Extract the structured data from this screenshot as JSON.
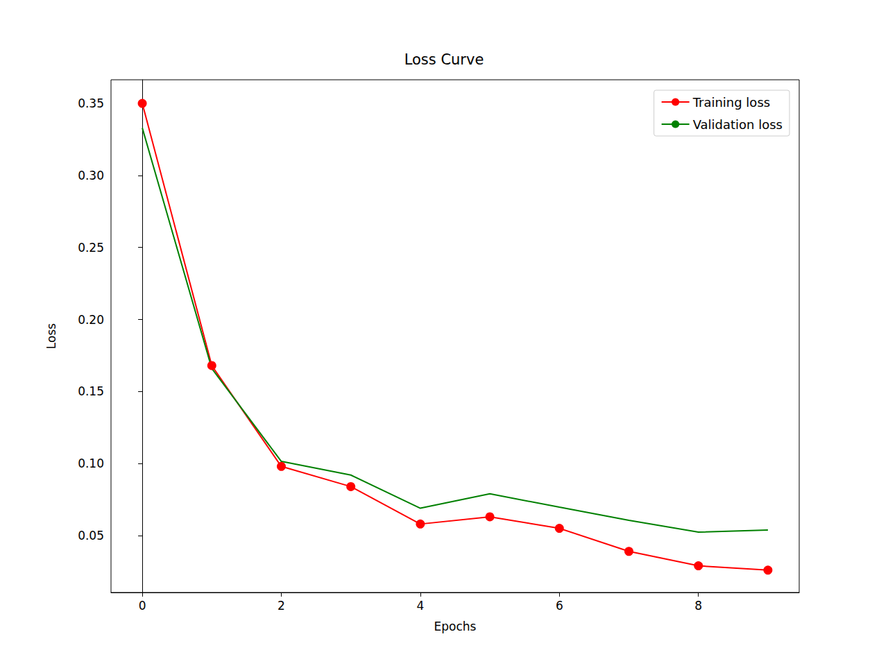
{
  "chart_data": {
    "type": "line",
    "title": "Loss Curve",
    "x_label": "Epochs",
    "y_label": "Loss",
    "x": [
      0,
      1,
      2,
      3,
      4,
      5,
      6,
      7,
      8,
      9
    ],
    "series": [
      {
        "name": "Training loss",
        "color": "#ff0000",
        "marker": "circle",
        "line_style": "solid",
        "values": [
          0.35,
          0.168,
          0.098,
          0.084,
          0.058,
          0.063,
          0.055,
          0.039,
          0.029,
          0.026
        ]
      },
      {
        "name": "Validation loss",
        "color": "#008000",
        "marker": "none",
        "line_style": "solid",
        "values": [
          0.333,
          0.166,
          0.1015,
          0.092,
          0.069,
          0.079,
          0.0697,
          0.0606,
          0.0524,
          0.0539
        ]
      }
    ],
    "xlim": [
      -0.45,
      9.45
    ],
    "xticks": [
      0,
      2,
      4,
      6,
      8
    ],
    "ylim": [
      0.0105,
      0.3664
    ],
    "yticks": [
      0.05,
      {
        "value": 0.1,
        "label": "0.10"
      },
      0.15,
      {
        "value": 0.2,
        "label": "0.20"
      },
      0.25,
      {
        "value": 0.3,
        "label": "0.30"
      },
      0.35
    ],
    "grid": false,
    "legend": "upper right"
  }
}
